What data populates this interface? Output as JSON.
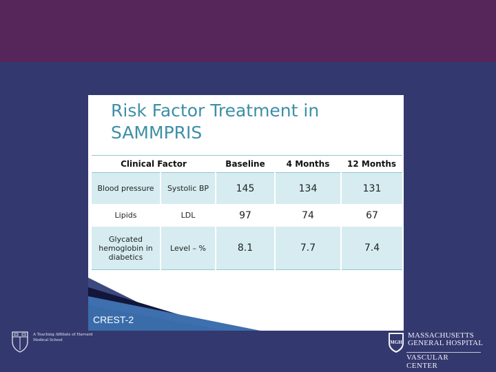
{
  "slide": {
    "title": "Risk Factor Treatment in\nSAMMPRIS",
    "footer_label": "CREST-2"
  },
  "table": {
    "headers": [
      "Clinical Factor",
      "Baseline",
      "4 Months",
      "12 Months"
    ],
    "rows": [
      {
        "factor": "Blood pressure",
        "measure": "Systolic BP",
        "baseline": "145",
        "m4": "134",
        "m12": "131"
      },
      {
        "factor": "Lipids",
        "measure": "LDL",
        "baseline": "97",
        "m4": "74",
        "m12": "67"
      },
      {
        "factor": "Glycated hemoglobin in diabetics",
        "measure": "Level – %",
        "baseline": "8.1",
        "m4": "7.7",
        "m12": "7.4"
      }
    ]
  },
  "logos": {
    "harvard_text": "A Teaching Affiliate of Harvard Medical School",
    "mgh_line1": "MASSACHUSETTS",
    "mgh_line2": "GENERAL HOSPITAL",
    "mgh_dept": "VASCULAR CENTER",
    "mgh_seal": "MGH"
  },
  "colors": {
    "top_band": "#56255a",
    "background": "#33386e",
    "title": "#3d8fa6",
    "shaded_row": "#d6ecf1",
    "rule": "#8fc6d3"
  }
}
